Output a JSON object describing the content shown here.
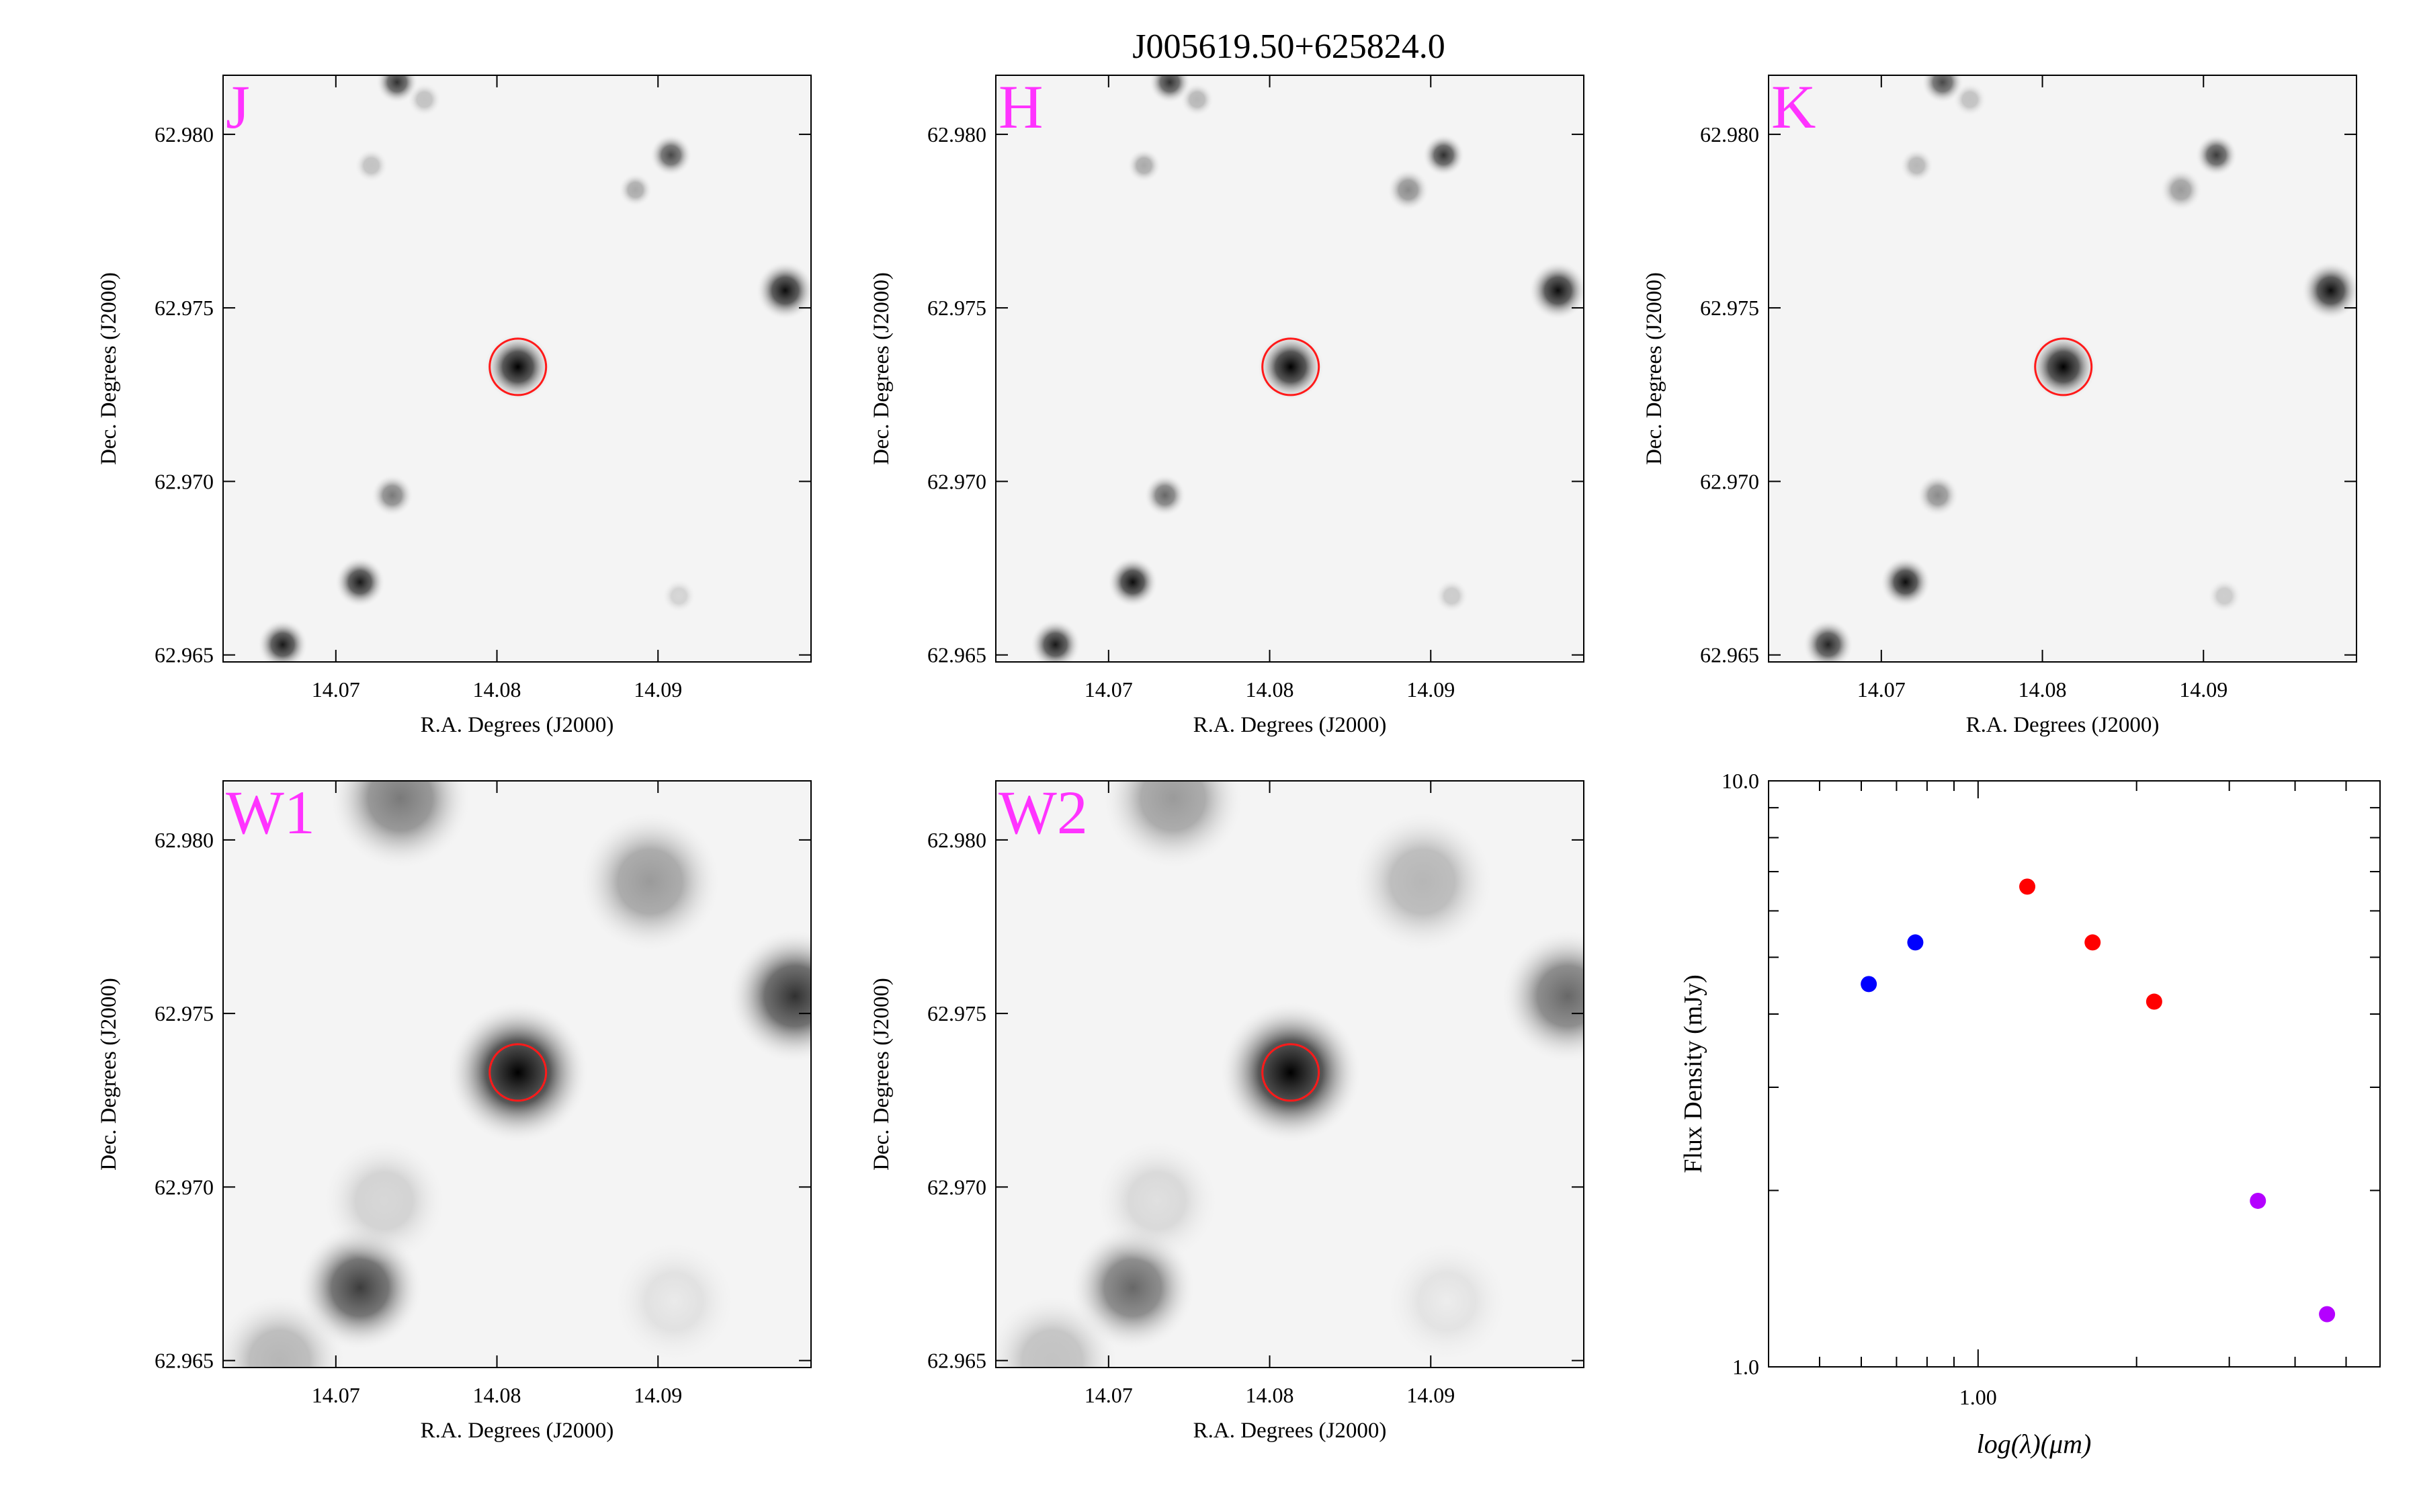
{
  "figure": {
    "title": "J005619.50+625824.0"
  },
  "colors": {
    "band_label": "#ff33ff",
    "source_circle": "#ff1a1a",
    "optical_points": "#0000ff",
    "nir_points": "#ff0000",
    "wise_points": "#b400ff"
  },
  "image_panels": [
    {
      "band": "J",
      "xlabel": "R.A. Degrees (J2000)",
      "ylabel": "Dec. Degrees (J2000)",
      "x_ticks": [
        "14.07",
        "14.08",
        "14.09"
      ],
      "y_ticks": [
        "62.965",
        "62.970",
        "62.975",
        "62.980"
      ],
      "ra_range": [
        14.063,
        14.0995
      ],
      "dec_range": [
        62.9648,
        62.9817
      ],
      "target": {
        "ra": 14.0813,
        "dec": 62.9733
      },
      "sources": [
        {
          "ra": 14.0813,
          "dec": 62.9733,
          "peak": 1.0,
          "size": 0.0008
        },
        {
          "ra": 14.0979,
          "dec": 62.9755,
          "peak": 0.95,
          "size": 0.0007
        },
        {
          "ra": 14.0715,
          "dec": 62.9671,
          "peak": 0.9,
          "size": 0.0006
        },
        {
          "ra": 14.0667,
          "dec": 62.9653,
          "peak": 0.9,
          "size": 0.0006
        },
        {
          "ra": 14.0738,
          "dec": 62.9815,
          "peak": 0.8,
          "size": 0.0005
        },
        {
          "ra": 14.0908,
          "dec": 62.9794,
          "peak": 0.7,
          "size": 0.0005
        },
        {
          "ra": 14.0886,
          "dec": 62.9784,
          "peak": 0.4,
          "size": 0.0004
        },
        {
          "ra": 14.0735,
          "dec": 62.9696,
          "peak": 0.55,
          "size": 0.0005
        },
        {
          "ra": 14.0722,
          "dec": 62.9791,
          "peak": 0.3,
          "size": 0.0004
        },
        {
          "ra": 14.0755,
          "dec": 62.981,
          "peak": 0.3,
          "size": 0.0004
        },
        {
          "ra": 14.0913,
          "dec": 62.9667,
          "peak": 0.2,
          "size": 0.0004
        }
      ]
    },
    {
      "band": "H",
      "xlabel": "R.A. Degrees (J2000)",
      "ylabel": "Dec. Degrees (J2000)",
      "x_ticks": [
        "14.07",
        "14.08",
        "14.09"
      ],
      "y_ticks": [
        "62.965",
        "62.970",
        "62.975",
        "62.980"
      ],
      "ra_range": [
        14.063,
        14.0995
      ],
      "dec_range": [
        62.9648,
        62.9817
      ],
      "target": {
        "ra": 14.0813,
        "dec": 62.9733
      },
      "sources": [
        {
          "ra": 14.0813,
          "dec": 62.9733,
          "peak": 1.0,
          "size": 0.0008
        },
        {
          "ra": 14.0979,
          "dec": 62.9755,
          "peak": 0.95,
          "size": 0.0007
        },
        {
          "ra": 14.0715,
          "dec": 62.9671,
          "peak": 0.95,
          "size": 0.0006
        },
        {
          "ra": 14.0667,
          "dec": 62.9653,
          "peak": 0.9,
          "size": 0.0006
        },
        {
          "ra": 14.0738,
          "dec": 62.9815,
          "peak": 0.8,
          "size": 0.0005
        },
        {
          "ra": 14.0908,
          "dec": 62.9794,
          "peak": 0.8,
          "size": 0.0005
        },
        {
          "ra": 14.0886,
          "dec": 62.9784,
          "peak": 0.5,
          "size": 0.0005
        },
        {
          "ra": 14.0735,
          "dec": 62.9696,
          "peak": 0.6,
          "size": 0.0005
        },
        {
          "ra": 14.0722,
          "dec": 62.9791,
          "peak": 0.4,
          "size": 0.0004
        },
        {
          "ra": 14.0755,
          "dec": 62.981,
          "peak": 0.35,
          "size": 0.0004
        },
        {
          "ra": 14.0913,
          "dec": 62.9667,
          "peak": 0.25,
          "size": 0.0004
        }
      ]
    },
    {
      "band": "K",
      "xlabel": "R.A. Degrees (J2000)",
      "ylabel": "Dec. Degrees (J2000)",
      "x_ticks": [
        "14.07",
        "14.08",
        "14.09"
      ],
      "y_ticks": [
        "62.965",
        "62.970",
        "62.975",
        "62.980"
      ],
      "ra_range": [
        14.063,
        14.0995
      ],
      "dec_range": [
        62.9648,
        62.9817
      ],
      "target": {
        "ra": 14.0813,
        "dec": 62.9733
      },
      "sources": [
        {
          "ra": 14.0813,
          "dec": 62.9733,
          "peak": 1.0,
          "size": 0.0008
        },
        {
          "ra": 14.0979,
          "dec": 62.9755,
          "peak": 0.95,
          "size": 0.0007
        },
        {
          "ra": 14.0715,
          "dec": 62.9671,
          "peak": 0.95,
          "size": 0.0006
        },
        {
          "ra": 14.0667,
          "dec": 62.9653,
          "peak": 0.85,
          "size": 0.0006
        },
        {
          "ra": 14.0738,
          "dec": 62.9815,
          "peak": 0.7,
          "size": 0.0005
        },
        {
          "ra": 14.0908,
          "dec": 62.9794,
          "peak": 0.75,
          "size": 0.0005
        },
        {
          "ra": 14.0886,
          "dec": 62.9784,
          "peak": 0.45,
          "size": 0.0005
        },
        {
          "ra": 14.0735,
          "dec": 62.9696,
          "peak": 0.5,
          "size": 0.0005
        },
        {
          "ra": 14.0722,
          "dec": 62.9791,
          "peak": 0.35,
          "size": 0.0004
        },
        {
          "ra": 14.0755,
          "dec": 62.981,
          "peak": 0.3,
          "size": 0.0004
        },
        {
          "ra": 14.0913,
          "dec": 62.9667,
          "peak": 0.25,
          "size": 0.0004
        }
      ]
    },
    {
      "band": "W1",
      "xlabel": "R.A. Degrees (J2000)",
      "ylabel": "Dec. Degrees (J2000)",
      "x_ticks": [
        "14.07",
        "14.08",
        "14.09"
      ],
      "y_ticks": [
        "62.965",
        "62.970",
        "62.975",
        "62.980"
      ],
      "ra_range": [
        14.063,
        14.0995
      ],
      "dec_range": [
        62.9648,
        62.9817
      ],
      "target": {
        "ra": 14.0813,
        "dec": 62.9733
      },
      "sources": [
        {
          "ra": 14.0813,
          "dec": 62.9733,
          "peak": 1.0,
          "size": 0.0017
        },
        {
          "ra": 14.0985,
          "dec": 62.9755,
          "peak": 0.8,
          "size": 0.0016
        },
        {
          "ra": 14.0715,
          "dec": 62.9671,
          "peak": 0.75,
          "size": 0.0015
        },
        {
          "ra": 14.0665,
          "dec": 62.965,
          "peak": 0.35,
          "size": 0.0016
        },
        {
          "ra": 14.074,
          "dec": 62.9812,
          "peak": 0.55,
          "size": 0.0017
        },
        {
          "ra": 14.0895,
          "dec": 62.9788,
          "peak": 0.45,
          "size": 0.0017
        },
        {
          "ra": 14.073,
          "dec": 62.9696,
          "peak": 0.2,
          "size": 0.0015
        },
        {
          "ra": 14.091,
          "dec": 62.9667,
          "peak": 0.08,
          "size": 0.0015
        }
      ]
    },
    {
      "band": "W2",
      "xlabel": "R.A. Degrees (J2000)",
      "ylabel": "Dec. Degrees (J2000)",
      "x_ticks": [
        "14.07",
        "14.08",
        "14.09"
      ],
      "y_ticks": [
        "62.965",
        "62.970",
        "62.975",
        "62.980"
      ],
      "ra_range": [
        14.063,
        14.0995
      ],
      "dec_range": [
        62.9648,
        62.9817
      ],
      "target": {
        "ra": 14.0813,
        "dec": 62.9733
      },
      "sources": [
        {
          "ra": 14.0813,
          "dec": 62.9733,
          "peak": 1.0,
          "size": 0.0017
        },
        {
          "ra": 14.0985,
          "dec": 62.9755,
          "peak": 0.6,
          "size": 0.0016
        },
        {
          "ra": 14.0715,
          "dec": 62.9671,
          "peak": 0.6,
          "size": 0.0015
        },
        {
          "ra": 14.0665,
          "dec": 62.965,
          "peak": 0.3,
          "size": 0.0016
        },
        {
          "ra": 14.074,
          "dec": 62.9812,
          "peak": 0.45,
          "size": 0.0017
        },
        {
          "ra": 14.0895,
          "dec": 62.9788,
          "peak": 0.35,
          "size": 0.0017
        },
        {
          "ra": 14.073,
          "dec": 62.9696,
          "peak": 0.15,
          "size": 0.0015
        },
        {
          "ra": 14.091,
          "dec": 62.9667,
          "peak": 0.06,
          "size": 0.0015
        }
      ]
    }
  ],
  "chart_data": {
    "type": "scatter",
    "title": "",
    "xlabel": "log(λ)(μm)",
    "ylabel": "Flux Density (mJy)",
    "x_scale": "log",
    "y_scale": "log",
    "xlim": [
      0.4,
      5.8
    ],
    "ylim": [
      1.0,
      10.0
    ],
    "x_tick_labels": [
      "1.00"
    ],
    "y_tick_labels": [
      "1.0",
      "10.0"
    ],
    "grid": false,
    "legend": "none",
    "series": [
      {
        "color": "#0000ff",
        "points": [
          {
            "x": 0.62,
            "y": 4.5
          },
          {
            "x": 0.76,
            "y": 5.3
          }
        ]
      },
      {
        "color": "#ff0000",
        "points": [
          {
            "x": 1.24,
            "y": 6.6,
            "yerr": 0.1
          },
          {
            "x": 1.65,
            "y": 5.3,
            "yerr": 0.1
          },
          {
            "x": 2.16,
            "y": 4.2,
            "yerr": 0.1
          }
        ]
      },
      {
        "color": "#b400ff",
        "points": [
          {
            "x": 3.4,
            "y": 1.92,
            "yerr": 0.04
          },
          {
            "x": 4.6,
            "y": 1.23,
            "yerr": 0.03
          }
        ]
      }
    ]
  }
}
